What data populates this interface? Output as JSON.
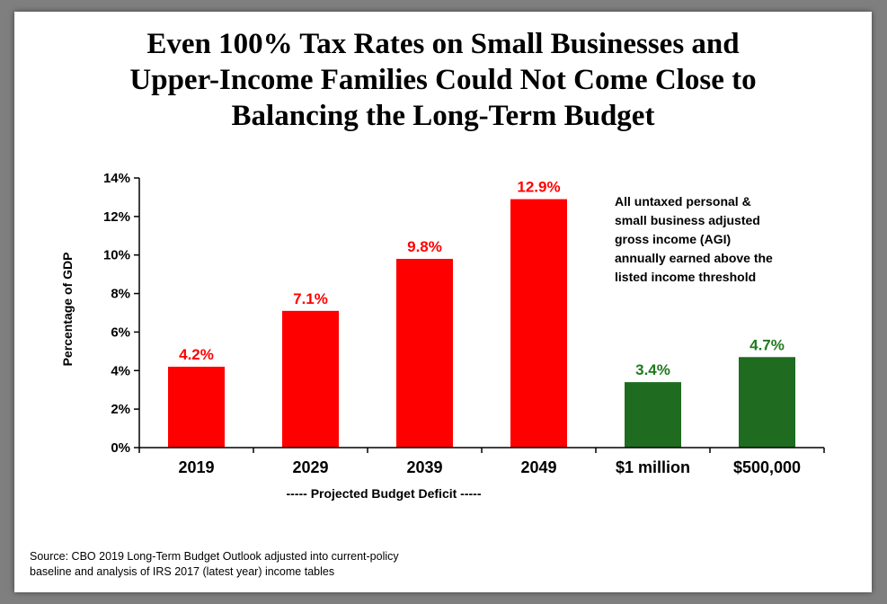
{
  "title_lines": [
    "Even 100% Tax Rates on Small Businesses and",
    "Upper-Income Families Could Not Come Close to",
    "Balancing the Long-Term Budget"
  ],
  "chart_data": {
    "type": "bar",
    "categories": [
      "2019",
      "2029",
      "2039",
      "2049",
      "$1 million",
      "$500,000"
    ],
    "values": [
      4.2,
      7.1,
      9.8,
      12.9,
      3.4,
      4.7
    ],
    "value_labels": [
      "4.2%",
      "7.1%",
      "9.8%",
      "12.9%",
      "3.4%",
      "4.7%"
    ],
    "bar_colors": [
      "#ff0000",
      "#ff0000",
      "#ff0000",
      "#ff0000",
      "#1f6b1f",
      "#1f6b1f"
    ],
    "label_colors": [
      "#ff0000",
      "#ff0000",
      "#ff0000",
      "#ff0000",
      "#1f7a1f",
      "#1f7a1f"
    ],
    "ylabel": "Percentage of GDP",
    "ylim": [
      0,
      14
    ],
    "yticks": [
      "0%",
      "2%",
      "4%",
      "6%",
      "8%",
      "10%",
      "12%",
      "14%"
    ],
    "xlabel": "----- Projected Budget Deficit -----",
    "annotation": [
      "All untaxed personal &",
      "small business adjusted",
      "gross income (AGI)",
      "annually earned above the",
      "listed income threshold"
    ],
    "grid": false
  },
  "source_lines": [
    "Source: CBO 2019 Long-Term Budget Outlook adjusted into current-policy",
    "baseline and analysis of IRS 2017 (latest year) income tables"
  ]
}
